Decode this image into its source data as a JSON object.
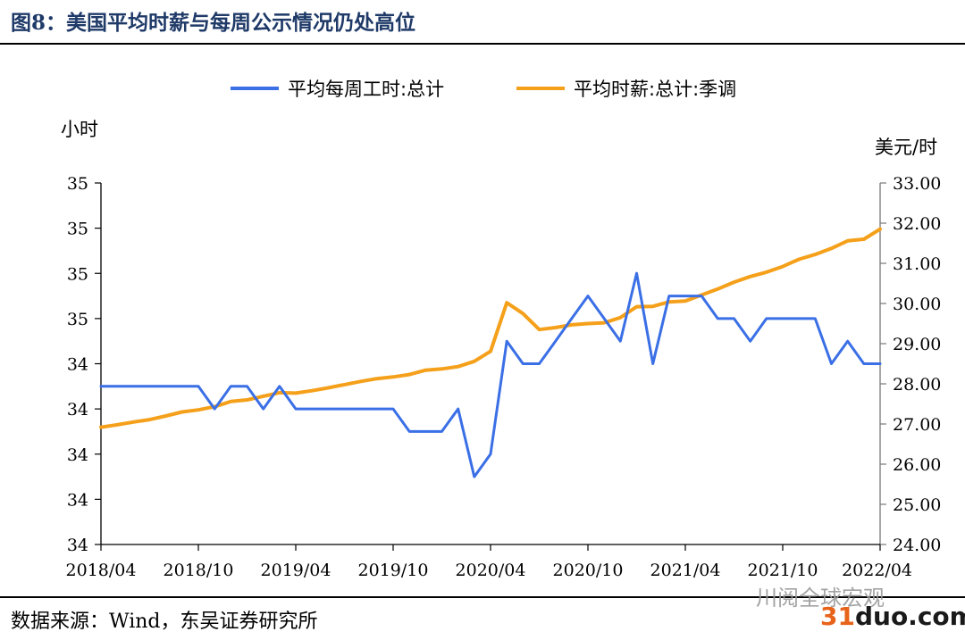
{
  "header": {
    "title": "图8：美国平均时薪与每周公示情况仍处高位"
  },
  "footer": {
    "source": "数据来源：Wind，东吴证券研究所"
  },
  "watermark": {
    "text": "川阅全球宏观",
    "site_accent": "31",
    "site_rest": "duo.com",
    "accent_color": "#e8631a"
  },
  "chart_data": {
    "type": "line",
    "left_unit": "小时",
    "right_unit": "美元/时",
    "left_ticks": [
      "34",
      "34",
      "34",
      "34",
      "34",
      "35",
      "35",
      "35",
      "35"
    ],
    "right_ticks": [
      "24.00",
      "25.00",
      "26.00",
      "27.00",
      "28.00",
      "29.00",
      "30.00",
      "31.00",
      "32.00",
      "33.00"
    ],
    "x_tick_labels": [
      "2018/04",
      "2018/10",
      "2019/04",
      "2019/10",
      "2020/04",
      "2020/10",
      "2021/04",
      "2021/10",
      "2022/04"
    ],
    "left_range": [
      33.8,
      35.4
    ],
    "right_range": [
      24.0,
      33.0
    ],
    "x_range": [
      "2018/04",
      "2022/04"
    ],
    "legend_position": "top-center",
    "grid": false,
    "series": [
      {
        "name": "平均每周工时:总计",
        "axis": "left",
        "color": "#3a6fe6",
        "x": [
          "2018/04",
          "2018/05",
          "2018/06",
          "2018/07",
          "2018/08",
          "2018/09",
          "2018/10",
          "2018/11",
          "2018/12",
          "2019/01",
          "2019/02",
          "2019/03",
          "2019/04",
          "2019/05",
          "2019/06",
          "2019/07",
          "2019/08",
          "2019/09",
          "2019/10",
          "2019/11",
          "2019/12",
          "2020/01",
          "2020/02",
          "2020/03",
          "2020/04",
          "2020/05",
          "2020/06",
          "2020/07",
          "2020/08",
          "2020/09",
          "2020/10",
          "2020/11",
          "2020/12",
          "2021/01",
          "2021/02",
          "2021/03",
          "2021/04",
          "2021/05",
          "2021/06",
          "2021/07",
          "2021/08",
          "2021/09",
          "2021/10",
          "2021/11",
          "2021/12",
          "2022/01",
          "2022/02",
          "2022/03",
          "2022/04"
        ],
        "values": [
          34.5,
          34.5,
          34.5,
          34.5,
          34.5,
          34.5,
          34.5,
          34.4,
          34.5,
          34.5,
          34.4,
          34.5,
          34.4,
          34.4,
          34.4,
          34.4,
          34.4,
          34.4,
          34.4,
          34.3,
          34.3,
          34.3,
          34.4,
          34.1,
          34.2,
          34.7,
          34.6,
          34.6,
          34.7,
          34.8,
          34.9,
          34.8,
          34.7,
          35.0,
          34.6,
          34.9,
          34.9,
          34.9,
          34.8,
          34.8,
          34.7,
          34.8,
          34.8,
          34.8,
          34.8,
          34.6,
          34.7,
          34.6,
          34.6
        ]
      },
      {
        "name": "平均时薪:总计:季调",
        "axis": "right",
        "color": "#f5a01a",
        "x": [
          "2018/04",
          "2018/05",
          "2018/06",
          "2018/07",
          "2018/08",
          "2018/09",
          "2018/10",
          "2018/11",
          "2018/12",
          "2019/01",
          "2019/02",
          "2019/03",
          "2019/04",
          "2019/05",
          "2019/06",
          "2019/07",
          "2019/08",
          "2019/09",
          "2019/10",
          "2019/11",
          "2019/12",
          "2020/01",
          "2020/02",
          "2020/03",
          "2020/04",
          "2020/05",
          "2020/06",
          "2020/07",
          "2020/08",
          "2020/09",
          "2020/10",
          "2020/11",
          "2020/12",
          "2021/01",
          "2021/02",
          "2021/03",
          "2021/04",
          "2021/05",
          "2021/06",
          "2021/07",
          "2021/08",
          "2021/09",
          "2021/10",
          "2021/11",
          "2021/12",
          "2022/01",
          "2022/02",
          "2022/03",
          "2022/04"
        ],
        "values": [
          26.92,
          26.98,
          27.05,
          27.11,
          27.2,
          27.3,
          27.35,
          27.43,
          27.56,
          27.6,
          27.69,
          27.78,
          27.77,
          27.83,
          27.9,
          27.98,
          28.06,
          28.13,
          28.17,
          28.23,
          28.34,
          28.37,
          28.43,
          28.56,
          28.81,
          30.02,
          29.75,
          29.35,
          29.4,
          29.47,
          29.5,
          29.52,
          29.65,
          29.92,
          29.93,
          30.04,
          30.06,
          30.21,
          30.36,
          30.53,
          30.67,
          30.78,
          30.92,
          31.1,
          31.22,
          31.37,
          31.56,
          31.6,
          31.85
        ]
      }
    ]
  }
}
